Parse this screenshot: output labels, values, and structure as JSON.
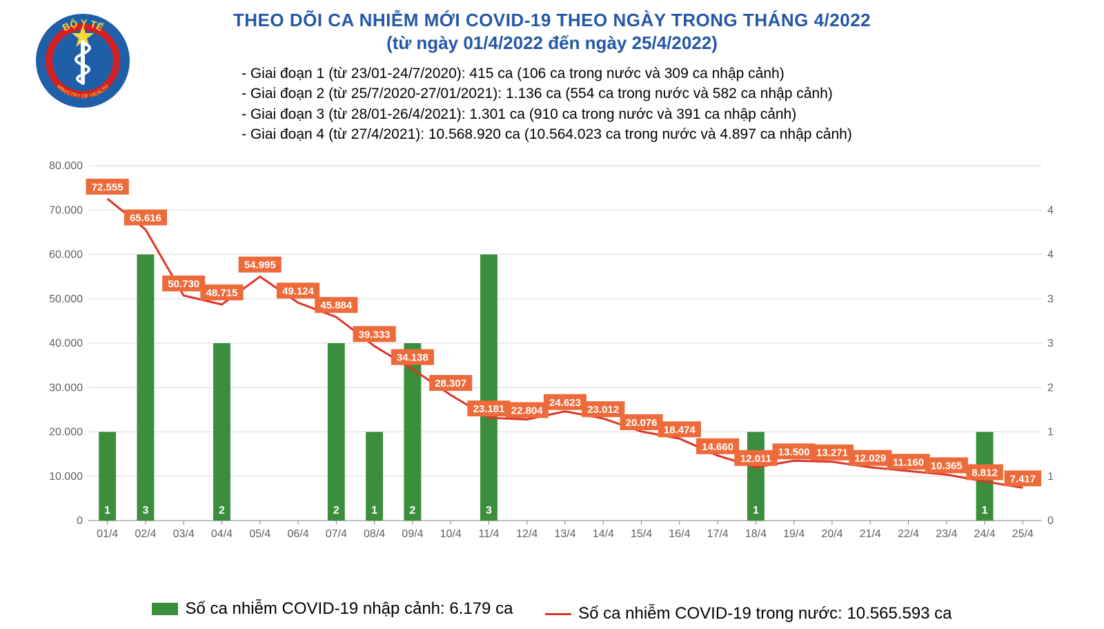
{
  "title": "THEO DÕI CA NHIỄM MỚI COVID-19 THEO NGÀY TRONG THÁNG 4/2022",
  "subtitle": "(từ ngày 01/4/2022 đến ngày 25/4/2022)",
  "notes": [
    "- Giai đoạn 1 (từ 23/01-24/7/2020): 415 ca (106 ca trong nước và 309 ca nhập cảnh)",
    "- Giai đoạn 2 (từ 25/7/2020-27/01/2021): 1.136 ca (554 ca trong nước và 582 ca nhập cảnh)",
    "- Giai đoạn 3 (từ 28/01-26/4/2021): 1.301 ca (910 ca trong nước và 391 ca nhập cảnh)",
    "- Giai đoạn 4 (từ 27/4/2021): 10.568.920 ca (10.564.023 ca trong nước và 4.897 ca nhập cảnh)"
  ],
  "legend": {
    "bar_label": "Số ca nhiễm COVID-19 nhập cảnh: 6.179 ca",
    "line_label": "Số ca nhiễm COVID-19 trong nước: 10.565.593 ca"
  },
  "chart": {
    "type": "combo-bar-line",
    "x_labels": [
      "01/4",
      "02/4",
      "03/4",
      "04/4",
      "05/4",
      "06/4",
      "07/4",
      "08/4",
      "09/4",
      "10/4",
      "11/4",
      "12/4",
      "13/4",
      "14/4",
      "15/4",
      "16/4",
      "17/4",
      "18/4",
      "19/4",
      "20/4",
      "21/4",
      "22/4",
      "23/4",
      "24/4",
      "25/4"
    ],
    "left_axis": {
      "min": 0,
      "max": 80000,
      "step": 10000,
      "tick_labels": [
        "0",
        "10.000",
        "20.000",
        "30.000",
        "40.000",
        "50.000",
        "60.000",
        "70.000",
        "80.000"
      ],
      "fontsize": 16,
      "color": "#606060"
    },
    "right_axis": {
      "min": 0,
      "max": 4,
      "step": 1,
      "tick_labels": [
        "0",
        "1",
        "1",
        "2",
        "3",
        "3",
        "4",
        "4"
      ],
      "fontsize": 16,
      "color": "#606060"
    },
    "line_series": {
      "name": "domestic_cases",
      "values": [
        72555,
        65616,
        50730,
        48715,
        54995,
        49124,
        45884,
        39333,
        34138,
        28307,
        23181,
        22804,
        24623,
        23012,
        20076,
        18474,
        14660,
        12011,
        13500,
        13271,
        12029,
        11160,
        10365,
        8812,
        7417
      ],
      "labels": [
        "72.555",
        "65.616",
        "50.730",
        "48.715",
        "54.995",
        "49.124",
        "45.884",
        "39.333",
        "34.138",
        "28.307",
        "23.181",
        "22.804",
        "24.623",
        "23.012",
        "20.076",
        "18.474",
        "14.660",
        "12.011",
        "13.500",
        "13.271",
        "12.029",
        "11.160",
        "10.365",
        "8.812",
        "7.417"
      ],
      "line_color": "#e03426",
      "line_width": 3,
      "label_bg": "#ed6b3a",
      "label_color": "#ffffff",
      "label_fontsize": 15
    },
    "bar_series": {
      "name": "imported_cases",
      "values": [
        1,
        3,
        0,
        2,
        0,
        0,
        2,
        1,
        2,
        0,
        3,
        0,
        0,
        0,
        0,
        0,
        0,
        1,
        0,
        0,
        0,
        0,
        0,
        1,
        0
      ],
      "labels": [
        "1",
        "3",
        "-",
        "2",
        "-",
        "-",
        "2",
        "1",
        "2",
        "-",
        "3",
        "-",
        "-",
        "-",
        "-",
        "-",
        "-",
        "1",
        "-",
        "-",
        "-",
        "-",
        "-",
        "1",
        "-"
      ],
      "bar_color": "#3b8e3b",
      "bar_width": 0.45,
      "right_axis_scale_max": 3,
      "label_color": "#ffffff",
      "label_fontsize": 16
    },
    "grid_color": "#d9d9d9",
    "axis_color": "#808080",
    "xlabel_fontsize": 16,
    "xlabel_color": "#606060",
    "background_color": "#ffffff"
  },
  "logo": {
    "outer_text_top": "BỘ Y TẾ",
    "outer_text_bottom": "MINISTRY OF HEALTH",
    "ring_outer_color": "#1f5fa8",
    "ring_inner_color": "#d42020",
    "star_color": "#f7d93f",
    "snake_color": "#ffffff"
  }
}
